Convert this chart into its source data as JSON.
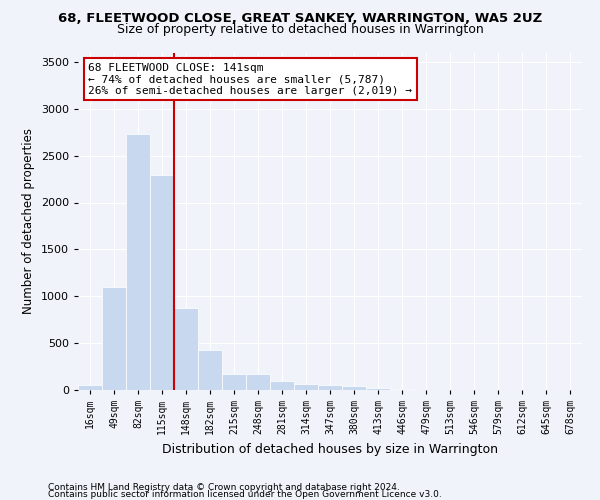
{
  "title": "68, FLEETWOOD CLOSE, GREAT SANKEY, WARRINGTON, WA5 2UZ",
  "subtitle": "Size of property relative to detached houses in Warrington",
  "xlabel": "Distribution of detached houses by size in Warrington",
  "ylabel": "Number of detached properties",
  "bar_values": [
    50,
    1100,
    2730,
    2290,
    880,
    430,
    170,
    170,
    95,
    65,
    55,
    40,
    25,
    10,
    5,
    3,
    2,
    1,
    1,
    0,
    0
  ],
  "bar_labels": [
    "16sqm",
    "49sqm",
    "82sqm",
    "115sqm",
    "148sqm",
    "182sqm",
    "215sqm",
    "248sqm",
    "281sqm",
    "314sqm",
    "347sqm",
    "380sqm",
    "413sqm",
    "446sqm",
    "479sqm",
    "513sqm",
    "546sqm",
    "579sqm",
    "612sqm",
    "645sqm",
    "678sqm"
  ],
  "bar_color": "#c8d8ee",
  "bar_edgecolor": "#ffffff",
  "vline_color": "#cc0000",
  "annotation_text": "68 FLEETWOOD CLOSE: 141sqm\n← 74% of detached houses are smaller (5,787)\n26% of semi-detached houses are larger (2,019) →",
  "annotation_box_color": "#ffffff",
  "annotation_box_edgecolor": "#cc0000",
  "ylim": [
    0,
    3600
  ],
  "yticks": [
    0,
    500,
    1000,
    1500,
    2000,
    2500,
    3000,
    3500
  ],
  "bg_color": "#f0f4fa",
  "axes_bg_color": "#f0f4fa",
  "footer_line1": "Contains HM Land Registry data © Crown copyright and database right 2024.",
  "footer_line2": "Contains public sector information licensed under the Open Government Licence v3.0.",
  "figsize": [
    6.0,
    5.0
  ],
  "dpi": 100,
  "title_fontsize": 9.5,
  "subtitle_fontsize": 9.0,
  "ylabel_fontsize": 8.5,
  "xlabel_fontsize": 9.0,
  "annotation_fontsize": 8.0,
  "footer_fontsize": 6.5
}
